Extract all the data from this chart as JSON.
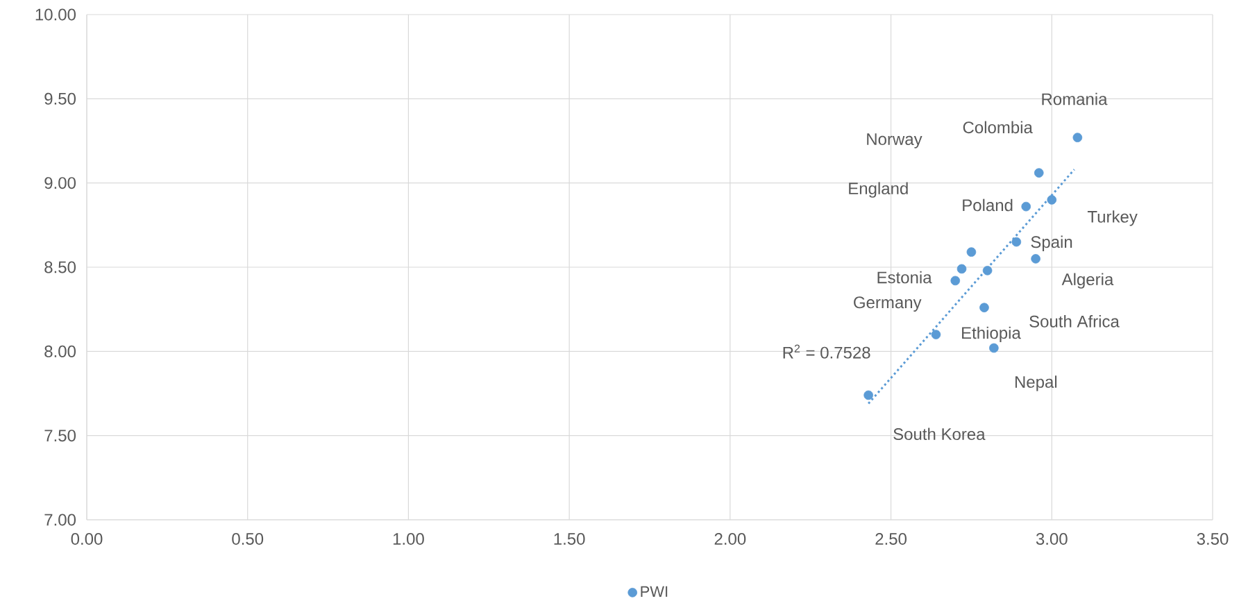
{
  "chart_data": {
    "type": "scatter",
    "xlim": [
      0,
      3.5
    ],
    "ylim": [
      7,
      10
    ],
    "xticks": [
      {
        "value": 0,
        "label": "0.00"
      },
      {
        "value": 0.5,
        "label": "0.50"
      },
      {
        "value": 1,
        "label": "1.00"
      },
      {
        "value": 1.5,
        "label": "1.50"
      },
      {
        "value": 2,
        "label": "2.00"
      },
      {
        "value": 2.5,
        "label": "2.50"
      },
      {
        "value": 3,
        "label": "3.00"
      },
      {
        "value": 3.5,
        "label": "3.50"
      }
    ],
    "yticks": [
      {
        "value": 7,
        "label": "7.00"
      },
      {
        "value": 7.5,
        "label": "7.50"
      },
      {
        "value": 8,
        "label": "8.00"
      },
      {
        "value": 8.5,
        "label": "8.50"
      },
      {
        "value": 9,
        "label": "9.00"
      },
      {
        "value": 9.5,
        "label": "9.50"
      },
      {
        "value": 10,
        "label": "10.00"
      }
    ],
    "grid": true,
    "legend": "bottom",
    "series": [
      {
        "name": "PWI",
        "marker": "circle",
        "color": "#5b9bd5",
        "x": [
          3.08,
          2.96,
          3.0,
          2.92,
          2.89,
          2.95,
          2.75,
          2.72,
          2.8,
          2.7,
          2.79,
          2.64,
          2.82,
          2.43
        ],
        "values": [
          9.27,
          9.06,
          8.9,
          8.86,
          8.65,
          8.55,
          8.59,
          8.49,
          8.48,
          8.42,
          8.26,
          8.1,
          8.02,
          7.74
        ]
      },
      {
        "type": "line",
        "color": "#5b9bd5",
        "line_style": "dotted",
        "marker": "none",
        "x": [
          2.43,
          3.07
        ],
        "values": [
          7.69,
          9.08
        ]
      }
    ],
    "annotations": [
      "Romania",
      "Colombia",
      "Norway",
      "England",
      "Poland",
      "Turkey",
      "Spain",
      "Algeria",
      "Estonia",
      "Germany",
      "South Africa",
      "Ethiopia",
      "Nepal",
      "South Korea",
      "R$^{2}$ = 0.7528"
    ]
  }
}
